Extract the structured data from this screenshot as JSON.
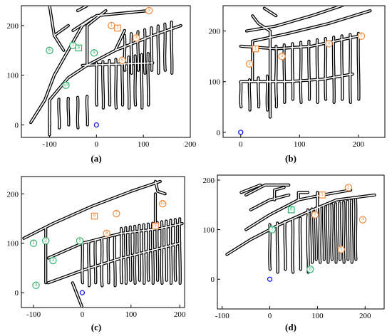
{
  "colors": {
    "orange": "#f08a3c",
    "green": "#2db36b",
    "blue": "#1a1aff",
    "tunnel": "#000000"
  },
  "panels": [
    {
      "id": "a",
      "label": "(a)",
      "xticks": [
        "-100",
        "0",
        "100",
        "200"
      ],
      "yticks": [
        "0",
        "100",
        "200"
      ],
      "xlim": [
        -160,
        200
      ],
      "ylim": [
        -25,
        240
      ],
      "origin": [
        0,
        0
      ],
      "tunnels": [
        [
          [
            -100,
            -20
          ],
          [
            -100,
            50
          ],
          [
            -60,
            95
          ],
          [
            -20,
            120
          ],
          [
            40,
            150
          ],
          [
            120,
            180
          ],
          [
            180,
            200
          ]
        ],
        [
          [
            -140,
            5
          ],
          [
            -110,
            50
          ],
          [
            -90,
            100
          ],
          [
            -60,
            150
          ],
          [
            -30,
            200
          ],
          [
            0,
            220
          ],
          [
            110,
            230
          ]
        ],
        [
          [
            -100,
            240
          ],
          [
            -90,
            180
          ],
          [
            -70,
            150
          ]
        ],
        [
          [
            -20,
            120
          ],
          [
            -20,
            200
          ],
          [
            20,
            230
          ]
        ],
        [
          [
            -90,
            180
          ],
          [
            -60,
            200
          ]
        ],
        [
          [
            -50,
            190
          ],
          [
            -10,
            215
          ]
        ],
        [
          [
            -30,
            120
          ],
          [
            120,
            125
          ]
        ],
        [
          [
            40,
            150
          ],
          [
            60,
            190
          ]
        ],
        [
          [
            -40,
            230
          ],
          [
            -20,
            240
          ]
        ]
      ],
      "combs": [
        {
          "x0": -100,
          "x1": -20,
          "n": 5,
          "y0": 50,
          "y1": 0
        },
        {
          "x0": 0,
          "x1": 110,
          "n": 9,
          "y0": 125,
          "y1": 40
        },
        {
          "x0": 60,
          "x1": 160,
          "n": 8,
          "y0": 180,
          "y1": 110
        }
      ],
      "markers": [
        {
          "t": "c",
          "c": "orange",
          "x": 32,
          "y": 200,
          "l": "1"
        },
        {
          "t": "s",
          "c": "orange",
          "x": 45,
          "y": 195,
          "l": "2"
        },
        {
          "t": "c",
          "c": "orange",
          "x": 112,
          "y": 230,
          "l": "3"
        },
        {
          "t": "c",
          "c": "orange",
          "x": 85,
          "y": 175,
          "l": "4"
        },
        {
          "t": "c",
          "c": "orange",
          "x": 55,
          "y": 130,
          "l": "5"
        },
        {
          "t": "c",
          "c": "green",
          "x": -100,
          "y": 150,
          "l": "6"
        },
        {
          "t": "c",
          "c": "green",
          "x": -50,
          "y": 160,
          "l": "7"
        },
        {
          "t": "s",
          "c": "green",
          "x": -38,
          "y": 155,
          "l": "8"
        },
        {
          "t": "c",
          "c": "green",
          "x": -5,
          "y": 145,
          "l": "9"
        },
        {
          "t": "c",
          "c": "green",
          "x": -65,
          "y": 80,
          "l": "10"
        },
        {
          "t": "o",
          "c": "blue",
          "x": 0,
          "y": 0,
          "l": ""
        }
      ]
    },
    {
      "id": "b",
      "label": "(b)",
      "xticks": [
        "0",
        "100",
        "200"
      ],
      "yticks": [
        "0",
        "100",
        "200"
      ],
      "xlim": [
        -30,
        245
      ],
      "ylim": [
        -10,
        250
      ],
      "origin": [
        0,
        0
      ],
      "tunnels": [
        [
          [
            20,
            180
          ],
          [
            80,
            195
          ],
          [
            150,
            215
          ],
          [
            220,
            240
          ]
        ],
        [
          [
            10,
            200
          ],
          [
            60,
            210
          ],
          [
            120,
            230
          ],
          [
            185,
            255
          ]
        ],
        [
          [
            0,
            170
          ],
          [
            60,
            165
          ],
          [
            120,
            170
          ],
          [
            200,
            190
          ]
        ],
        [
          [
            0,
            100
          ],
          [
            80,
            100
          ],
          [
            140,
            105
          ],
          [
            190,
            115
          ]
        ],
        [
          [
            20,
            230
          ],
          [
            30,
            215
          ],
          [
            50,
            200
          ]
        ],
        [
          [
            40,
            245
          ],
          [
            60,
            230
          ]
        ],
        [
          [
            20,
            180
          ],
          [
            20,
            100
          ]
        ],
        [
          [
            50,
            200
          ],
          [
            50,
            30
          ]
        ]
      ],
      "combs": [
        {
          "x0": 0,
          "x1": 60,
          "n": 5,
          "y0": 100,
          "y1": 50
        },
        {
          "x0": 60,
          "x1": 200,
          "n": 11,
          "y0": 170,
          "y1": 65
        }
      ],
      "markers": [
        {
          "t": "s",
          "c": "orange",
          "x": 25,
          "y": 165,
          "l": "1"
        },
        {
          "t": "c",
          "c": "orange",
          "x": 15,
          "y": 135,
          "l": "2"
        },
        {
          "t": "c",
          "c": "orange",
          "x": 70,
          "y": 150,
          "l": "3"
        },
        {
          "t": "c",
          "c": "orange",
          "x": 150,
          "y": 175,
          "l": "4"
        },
        {
          "t": "c",
          "c": "orange",
          "x": 205,
          "y": 190,
          "l": "5"
        },
        {
          "t": "o",
          "c": "blue",
          "x": 0,
          "y": 0,
          "l": ""
        }
      ]
    },
    {
      "id": "c",
      "label": "(c)",
      "xticks": [
        "-100",
        "0",
        "100",
        "200"
      ],
      "yticks": [
        "0",
        "100",
        "200"
      ],
      "xlim": [
        -125,
        210
      ],
      "ylim": [
        -30,
        235
      ],
      "origin": [
        0,
        0
      ],
      "tunnels": [
        [
          [
            -120,
            110
          ],
          [
            -60,
            140
          ],
          [
            20,
            175
          ],
          [
            100,
            205
          ],
          [
            160,
            225
          ]
        ],
        [
          [
            -70,
            70
          ],
          [
            0,
            100
          ],
          [
            80,
            120
          ],
          [
            160,
            130
          ],
          [
            205,
            140
          ]
        ],
        [
          [
            -70,
            20
          ],
          [
            0,
            45
          ],
          [
            80,
            70
          ],
          [
            140,
            85
          ],
          [
            200,
            100
          ]
        ],
        [
          [
            -75,
            130
          ],
          [
            -75,
            20
          ]
        ],
        [
          [
            -20,
            20
          ],
          [
            0,
            -30
          ]
        ],
        [
          [
            150,
            225
          ],
          [
            155,
            205
          ],
          [
            170,
            200
          ]
        ],
        [
          [
            150,
            130
          ],
          [
            150,
            200
          ]
        ]
      ],
      "combs": [
        {
          "x0": 0,
          "x1": 80,
          "n": 7,
          "y0": 100,
          "y1": 20
        },
        {
          "x0": 80,
          "x1": 200,
          "n": 14,
          "y0": 130,
          "y1": 25
        }
      ],
      "markers": [
        {
          "s": 1,
          "t": "c",
          "c": "green",
          "x": -100,
          "y": 100,
          "l": "1"
        },
        {
          "t": "c",
          "c": "green",
          "x": -75,
          "y": 105,
          "l": "2"
        },
        {
          "t": "c",
          "c": "green",
          "x": -60,
          "y": 65,
          "l": "3"
        },
        {
          "t": "c",
          "c": "green",
          "x": -95,
          "y": 15,
          "l": "4"
        },
        {
          "t": "c",
          "c": "green",
          "x": -5,
          "y": 105,
          "l": "5"
        },
        {
          "t": "s",
          "c": "orange",
          "x": 25,
          "y": 155,
          "l": "6"
        },
        {
          "t": "c",
          "c": "orange",
          "x": 70,
          "y": 160,
          "l": "7"
        },
        {
          "t": "c",
          "c": "orange",
          "x": 50,
          "y": 120,
          "l": "8"
        },
        {
          "t": "s",
          "c": "orange",
          "x": 150,
          "y": 135,
          "l": "9"
        },
        {
          "t": "c",
          "c": "orange",
          "x": 165,
          "y": 180,
          "l": "10"
        },
        {
          "t": "o",
          "c": "blue",
          "x": 0,
          "y": 0,
          "l": ""
        }
      ]
    },
    {
      "id": "d",
      "label": "(d)",
      "xticks": [
        "-100",
        "0",
        "100",
        "200"
      ],
      "yticks": [
        "0",
        "100",
        "200"
      ],
      "xlim": [
        -110,
        240
      ],
      "ylim": [
        -60,
        210
      ],
      "origin": [
        0,
        0
      ],
      "tunnels": [
        [
          [
            -90,
            50
          ],
          [
            -40,
            80
          ],
          [
            20,
            110
          ],
          [
            90,
            140
          ],
          [
            140,
            160
          ],
          [
            220,
            170
          ]
        ],
        [
          [
            -50,
            100
          ],
          [
            0,
            130
          ],
          [
            60,
            160
          ],
          [
            110,
            170
          ],
          [
            170,
            180
          ]
        ],
        [
          [
            -50,
            170
          ],
          [
            -10,
            190
          ],
          [
            40,
            190
          ]
        ],
        [
          [
            -40,
            140
          ],
          [
            0,
            160
          ],
          [
            40,
            170
          ]
        ],
        [
          [
            10,
            160
          ],
          [
            10,
            180
          ],
          [
            30,
            185
          ]
        ],
        [
          [
            60,
            160
          ],
          [
            60,
            175
          ],
          [
            80,
            175
          ]
        ],
        [
          [
            100,
            130
          ],
          [
            100,
            175
          ]
        ],
        [
          [
            -60,
            175
          ],
          [
            -20,
            190
          ]
        ]
      ],
      "combs": [
        {
          "x0": 0,
          "x1": 80,
          "n": 6,
          "y0": 110,
          "y1": 20
        },
        {
          "x0": 80,
          "x1": 180,
          "n": 13,
          "y0": 140,
          "y1": 40
        }
      ],
      "markers": [
        {
          "t": "s",
          "c": "orange",
          "x": 110,
          "y": 170,
          "l": "1"
        },
        {
          "t": "c",
          "c": "orange",
          "x": 165,
          "y": 185,
          "l": "2"
        },
        {
          "t": "c",
          "c": "orange",
          "x": 95,
          "y": 130,
          "l": "3"
        },
        {
          "t": "c",
          "c": "orange",
          "x": 195,
          "y": 120,
          "l": "4"
        },
        {
          "t": "c",
          "c": "orange",
          "x": 150,
          "y": 60,
          "l": "5"
        },
        {
          "t": "s",
          "c": "green",
          "x": 45,
          "y": 140,
          "l": "6"
        },
        {
          "t": "c",
          "c": "green",
          "x": 5,
          "y": 100,
          "l": "7"
        },
        {
          "t": "c",
          "c": "green",
          "x": 85,
          "y": 20,
          "l": "8"
        },
        {
          "t": "o",
          "c": "blue",
          "x": 0,
          "y": 0,
          "l": ""
        }
      ]
    }
  ]
}
